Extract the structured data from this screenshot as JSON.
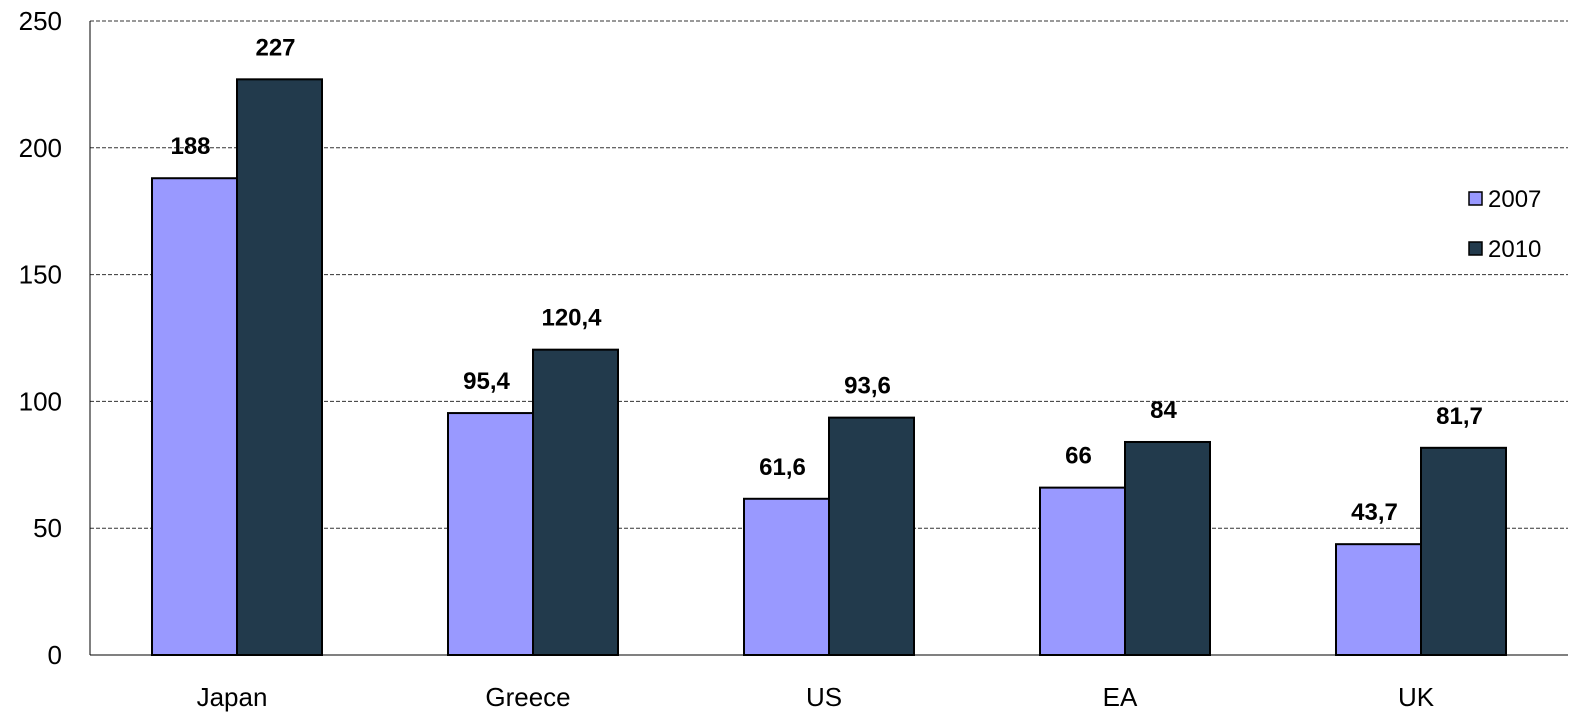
{
  "chart_data": {
    "type": "bar",
    "categories": [
      "Japan",
      "Greece",
      "US",
      "EA",
      "UK"
    ],
    "series": [
      {
        "name": "2007",
        "values": [
          188,
          95.4,
          61.6,
          66,
          43.7
        ],
        "labels": [
          "188",
          "95,4",
          "61,6",
          "66",
          "43,7"
        ],
        "color": "#9999FF"
      },
      {
        "name": "2010",
        "values": [
          227,
          120.4,
          93.6,
          84,
          81.7
        ],
        "labels": [
          "227",
          "120,4",
          "93,6",
          "84",
          "81,7"
        ],
        "color": "#223A4C"
      }
    ],
    "y_ticks": [
      "0",
      "50",
      "100",
      "150",
      "200",
      "250"
    ],
    "ylim": [
      0,
      250
    ],
    "grid": true,
    "grid_style": "dashed",
    "legend_position": "right"
  }
}
